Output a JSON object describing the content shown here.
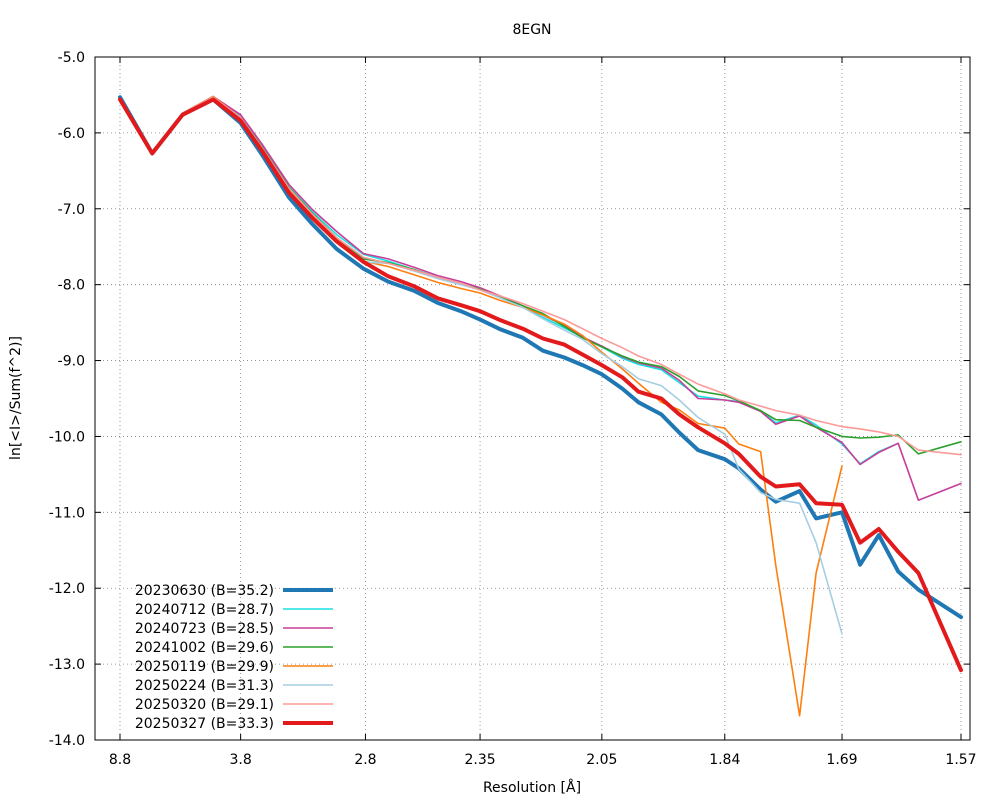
{
  "chart_data": {
    "type": "line",
    "title": "8EGN",
    "xlabel": "Resolution [Å]",
    "ylabel": "ln[<I>/Sum(f^2)]",
    "x_scale": "inverse-square-resolution",
    "xticks": [
      "8.8",
      "3.8",
      "2.8",
      "2.35",
      "2.05",
      "1.84",
      "1.69",
      "1.57"
    ],
    "xtick_values": [
      8.8,
      3.8,
      2.8,
      2.35,
      2.05,
      1.84,
      1.69,
      1.57
    ],
    "xlim": [
      8.8,
      1.57
    ],
    "ylim": [
      -14.0,
      -5.0
    ],
    "yticks": [
      "-5.0",
      "-6.0",
      "-7.0",
      "-8.0",
      "-9.0",
      "-10.0",
      "-11.0",
      "-12.0",
      "-13.0",
      "-14.0"
    ],
    "ytick_values": [
      -5,
      -6,
      -7,
      -8,
      -9,
      -10,
      -11,
      -12,
      -13,
      -14
    ],
    "grid": true,
    "legend_position": "bottom-left",
    "series": [
      {
        "name": "20230630 (B=35.2)",
        "color": "#1f77b4",
        "width": 4,
        "x": [
          8.8,
          5.98,
          4.87,
          4.21,
          3.8,
          3.55,
          3.3,
          3.12,
          2.96,
          2.81,
          2.69,
          2.58,
          2.49,
          2.41,
          2.35,
          2.29,
          2.23,
          2.18,
          2.13,
          2.09,
          2.05,
          2.01,
          1.98,
          1.94,
          1.91,
          1.88,
          1.84,
          1.82,
          1.79,
          1.77,
          1.74,
          1.72,
          1.69,
          1.67,
          1.65,
          1.63,
          1.61,
          1.57
        ],
        "y": [
          -5.53,
          -6.27,
          -5.76,
          -5.56,
          -5.87,
          -6.29,
          -6.85,
          -7.2,
          -7.53,
          -7.79,
          -7.96,
          -8.08,
          -8.24,
          -8.35,
          -8.46,
          -8.59,
          -8.7,
          -8.87,
          -8.96,
          -9.06,
          -9.18,
          -9.37,
          -9.55,
          -9.71,
          -9.95,
          -10.18,
          -10.3,
          -10.42,
          -10.7,
          -10.86,
          -10.72,
          -11.08,
          -11.0,
          -11.69,
          -11.3,
          -11.78,
          -12.02,
          -12.38
        ]
      },
      {
        "name": "20240712 (B=28.7)",
        "color": "#17e0e0",
        "width": 1.6,
        "x": [
          8.8,
          5.98,
          4.87,
          4.21,
          3.8,
          3.55,
          3.3,
          3.12,
          2.96,
          2.81,
          2.69,
          2.58,
          2.49,
          2.41,
          2.35,
          2.29,
          2.23,
          2.18,
          2.13,
          2.09,
          2.05,
          2.01,
          1.98,
          1.94,
          1.91,
          1.88,
          1.84,
          1.82,
          1.79,
          1.77,
          1.74,
          1.72,
          1.69,
          1.67,
          1.65,
          1.63
        ],
        "y": [
          -5.56,
          -6.25,
          -5.74,
          -5.52,
          -5.78,
          -6.17,
          -6.71,
          -7.04,
          -7.34,
          -7.6,
          -7.69,
          -7.8,
          -7.9,
          -7.99,
          -8.05,
          -8.17,
          -8.3,
          -8.43,
          -8.57,
          -8.69,
          -8.82,
          -8.97,
          -9.05,
          -9.12,
          -9.29,
          -9.47,
          -9.52,
          -9.54,
          -9.66,
          -9.82,
          -9.72,
          -9.85,
          -10.1,
          -10.36,
          -10.2,
          -10.09
        ]
      },
      {
        "name": "20240723 (B=28.5)",
        "color": "#c83e9b",
        "width": 1.6,
        "x": [
          8.8,
          5.98,
          4.87,
          4.21,
          3.8,
          3.55,
          3.3,
          3.12,
          2.96,
          2.81,
          2.69,
          2.58,
          2.49,
          2.41,
          2.35,
          2.29,
          2.23,
          2.18,
          2.13,
          2.09,
          2.05,
          2.01,
          1.98,
          1.94,
          1.91,
          1.88,
          1.84,
          1.82,
          1.79,
          1.77,
          1.74,
          1.72,
          1.69,
          1.67,
          1.65,
          1.63,
          1.61,
          1.57
        ],
        "y": [
          -5.56,
          -6.25,
          -5.74,
          -5.52,
          -5.76,
          -6.15,
          -6.68,
          -7.01,
          -7.3,
          -7.59,
          -7.66,
          -7.77,
          -7.88,
          -7.96,
          -8.04,
          -8.15,
          -8.28,
          -8.4,
          -8.54,
          -8.69,
          -8.81,
          -8.95,
          -9.03,
          -9.1,
          -9.26,
          -9.5,
          -9.52,
          -9.55,
          -9.67,
          -9.84,
          -9.73,
          -9.88,
          -10.08,
          -10.37,
          -10.21,
          -10.09,
          -10.84,
          -10.62
        ]
      },
      {
        "name": "20241002 (B=29.6)",
        "color": "#2ca02c",
        "width": 1.6,
        "x": [
          8.8,
          5.98,
          4.87,
          4.21,
          3.8,
          3.55,
          3.3,
          3.12,
          2.96,
          2.81,
          2.69,
          2.58,
          2.49,
          2.41,
          2.35,
          2.29,
          2.23,
          2.18,
          2.13,
          2.09,
          2.05,
          2.01,
          1.98,
          1.94,
          1.91,
          1.88,
          1.84,
          1.82,
          1.79,
          1.77,
          1.74,
          1.72,
          1.69,
          1.67,
          1.65,
          1.63,
          1.61,
          1.57
        ],
        "y": [
          -5.56,
          -6.25,
          -5.74,
          -5.53,
          -5.8,
          -6.19,
          -6.72,
          -7.06,
          -7.38,
          -7.66,
          -7.71,
          -7.8,
          -7.91,
          -7.99,
          -8.06,
          -8.17,
          -8.28,
          -8.38,
          -8.55,
          -8.7,
          -8.82,
          -8.94,
          -9.02,
          -9.08,
          -9.21,
          -9.4,
          -9.46,
          -9.53,
          -9.66,
          -9.78,
          -9.79,
          -9.88,
          -10.0,
          -10.02,
          -10.01,
          -9.98,
          -10.23,
          -10.07
        ]
      },
      {
        "name": "20250119 (B=29.9)",
        "color": "#ff7f0e",
        "width": 1.6,
        "x": [
          8.8,
          5.98,
          4.87,
          4.21,
          3.8,
          3.55,
          3.3,
          3.12,
          2.96,
          2.81,
          2.69,
          2.58,
          2.49,
          2.41,
          2.35,
          2.29,
          2.23,
          2.18,
          2.13,
          2.09,
          2.05,
          2.01,
          1.98,
          1.94,
          1.91,
          1.88,
          1.84,
          1.82,
          1.79,
          1.77,
          1.74,
          1.72,
          1.69
        ],
        "y": [
          -5.56,
          -6.25,
          -5.74,
          -5.52,
          -5.8,
          -6.2,
          -6.74,
          -7.09,
          -7.4,
          -7.69,
          -7.76,
          -7.87,
          -7.97,
          -8.05,
          -8.11,
          -8.21,
          -8.3,
          -8.4,
          -8.52,
          -8.67,
          -8.89,
          -9.11,
          -9.3,
          -9.55,
          -9.65,
          -9.83,
          -9.89,
          -10.1,
          -10.2,
          -11.7,
          -13.68,
          -11.8,
          -10.39
        ]
      },
      {
        "name": "20250224 (B=31.3)",
        "color": "#a6cee3",
        "width": 1.6,
        "x": [
          8.8,
          5.98,
          4.87,
          4.21,
          3.8,
          3.55,
          3.3,
          3.12,
          2.96,
          2.81,
          2.69,
          2.58,
          2.49,
          2.41,
          2.35,
          2.29,
          2.23,
          2.18,
          2.13,
          2.09,
          2.05,
          2.01,
          1.98,
          1.94,
          1.91,
          1.88,
          1.84,
          1.82,
          1.79,
          1.77,
          1.74,
          1.72,
          1.69
        ],
        "y": [
          -5.56,
          -6.25,
          -5.74,
          -5.53,
          -5.82,
          -6.23,
          -6.78,
          -7.13,
          -7.43,
          -7.7,
          -7.72,
          -7.82,
          -7.92,
          -8.0,
          -8.07,
          -8.18,
          -8.3,
          -8.45,
          -8.6,
          -8.72,
          -8.91,
          -9.08,
          -9.24,
          -9.33,
          -9.52,
          -9.75,
          -9.97,
          -10.43,
          -10.74,
          -10.83,
          -10.88,
          -11.4,
          -12.6
        ]
      },
      {
        "name": "20250320 (B=29.1)",
        "color": "#fb9a99",
        "width": 1.6,
        "x": [
          8.8,
          5.98,
          4.87,
          4.21,
          3.8,
          3.55,
          3.3,
          3.12,
          2.96,
          2.81,
          2.69,
          2.58,
          2.49,
          2.41,
          2.35,
          2.29,
          2.23,
          2.18,
          2.13,
          2.09,
          2.05,
          2.01,
          1.98,
          1.94,
          1.91,
          1.88,
          1.84,
          1.82,
          1.79,
          1.77,
          1.74,
          1.72,
          1.69,
          1.67,
          1.65,
          1.63,
          1.61,
          1.57
        ],
        "y": [
          -5.56,
          -6.25,
          -5.74,
          -5.53,
          -5.8,
          -6.2,
          -6.73,
          -7.07,
          -7.38,
          -7.64,
          -7.72,
          -7.81,
          -7.9,
          -7.98,
          -8.07,
          -8.15,
          -8.25,
          -8.35,
          -8.46,
          -8.58,
          -8.71,
          -8.83,
          -8.94,
          -9.05,
          -9.18,
          -9.31,
          -9.44,
          -9.52,
          -9.6,
          -9.66,
          -9.72,
          -9.79,
          -9.87,
          -9.9,
          -9.94,
          -10.0,
          -10.18,
          -10.24
        ]
      },
      {
        "name": "20250327 (B=33.3)",
        "color": "#e31a1c",
        "width": 4,
        "x": [
          8.8,
          5.98,
          4.87,
          4.21,
          3.8,
          3.55,
          3.3,
          3.12,
          2.96,
          2.81,
          2.69,
          2.58,
          2.49,
          2.41,
          2.35,
          2.29,
          2.23,
          2.18,
          2.13,
          2.09,
          2.05,
          2.01,
          1.98,
          1.94,
          1.91,
          1.88,
          1.84,
          1.82,
          1.79,
          1.77,
          1.74,
          1.72,
          1.69,
          1.67,
          1.65,
          1.63,
          1.61,
          1.57
        ],
        "y": [
          -5.56,
          -6.27,
          -5.76,
          -5.56,
          -5.84,
          -6.24,
          -6.79,
          -7.12,
          -7.43,
          -7.7,
          -7.89,
          -8.02,
          -8.18,
          -8.27,
          -8.35,
          -8.47,
          -8.58,
          -8.71,
          -8.79,
          -8.92,
          -9.06,
          -9.22,
          -9.41,
          -9.5,
          -9.71,
          -9.88,
          -10.09,
          -10.23,
          -10.53,
          -10.66,
          -10.63,
          -10.88,
          -10.9,
          -11.4,
          -11.22,
          -11.52,
          -11.8,
          -13.08
        ]
      }
    ]
  }
}
